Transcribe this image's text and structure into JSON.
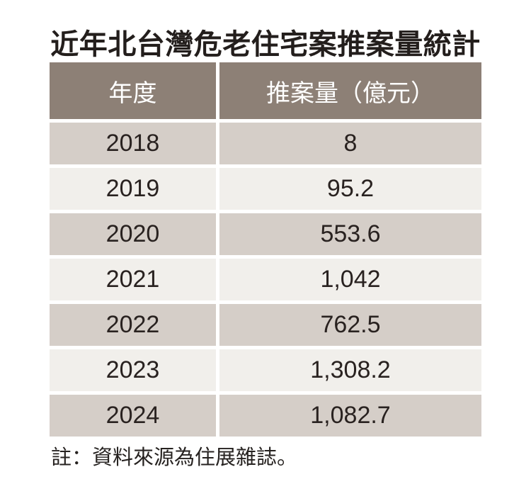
{
  "page": {
    "title": "近年北台灣危老住宅案推案量統計",
    "note": "註：資料來源為住展雜誌。"
  },
  "table": {
    "header": {
      "year": "年度",
      "amount": "推案量（億元）"
    },
    "rows": [
      {
        "year": "2018",
        "value": "8"
      },
      {
        "year": "2019",
        "value": "95.2"
      },
      {
        "year": "2020",
        "value": "553.6"
      },
      {
        "year": "2021",
        "value": "1,042"
      },
      {
        "year": "2022",
        "value": "762.5"
      },
      {
        "year": "2023",
        "value": "1,308.2"
      },
      {
        "year": "2024",
        "value": "1,082.7"
      }
    ]
  },
  "colors": {
    "header_bg": "#8d8076",
    "header_text": "#ffffff",
    "row_dark_bg": "#d5cec8",
    "row_light_bg": "#f1efeb",
    "text_dark": "#292220",
    "title_text": "#231e1c",
    "background": "#ffffff",
    "divider": "#ffffff"
  },
  "chart_data": {
    "type": "table",
    "title": "近年北台灣危老住宅案推案量統計",
    "columns": [
      "年度",
      "推案量（億元）"
    ],
    "categories": [
      "2018",
      "2019",
      "2020",
      "2021",
      "2022",
      "2023",
      "2024"
    ],
    "values": [
      8,
      95.2,
      553.6,
      1042,
      762.5,
      1308.2,
      1082.7
    ],
    "ylabel": "推案量（億元）",
    "note": "註：資料來源為住展雜誌。",
    "legend": "none",
    "grid": "off"
  }
}
